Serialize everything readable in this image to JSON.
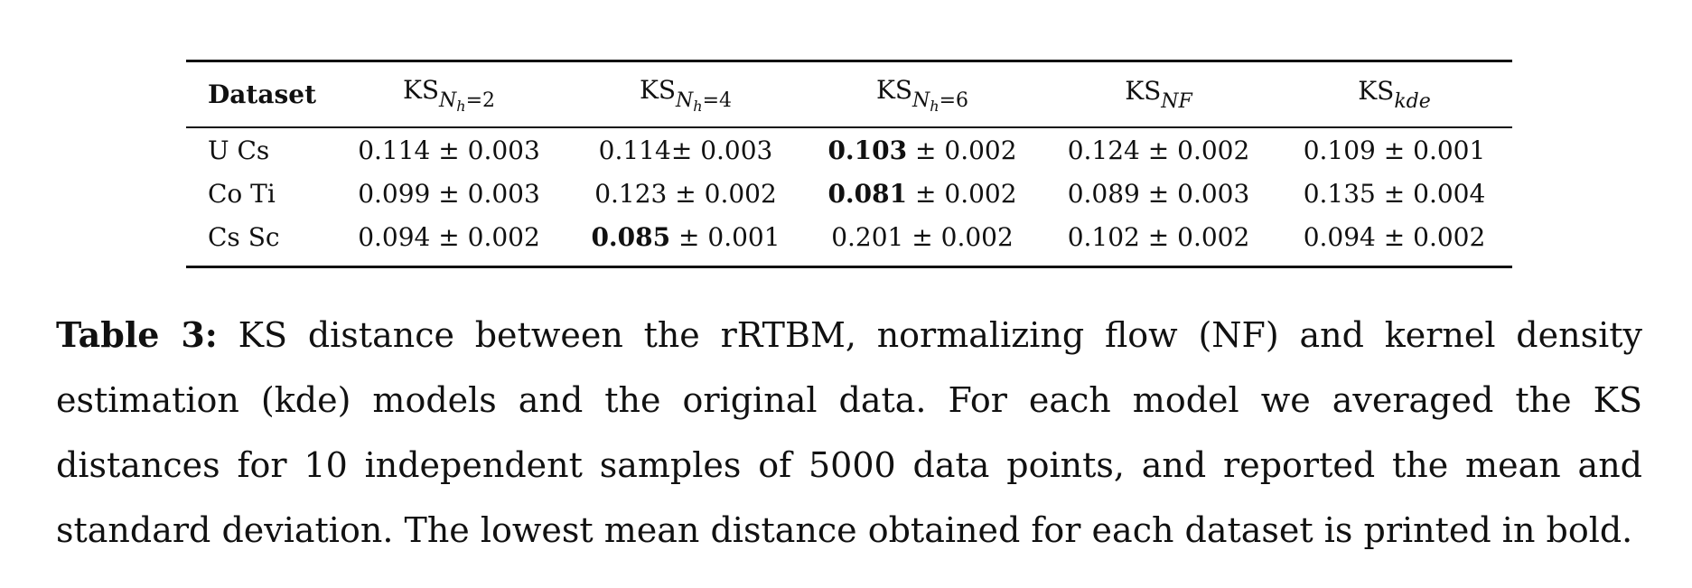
{
  "table": {
    "headers": [
      {
        "main": "Dataset",
        "sub": "",
        "subsub": "",
        "eqval": ""
      },
      {
        "main": "KS",
        "sub": "N",
        "subsub": "h",
        "eqval": "=2"
      },
      {
        "main": "KS",
        "sub": "N",
        "subsub": "h",
        "eqval": "=4"
      },
      {
        "main": "KS",
        "sub": "N",
        "subsub": "h",
        "eqval": "=6"
      },
      {
        "main": "KS",
        "sub": "NF",
        "subsub": "",
        "eqval": ""
      },
      {
        "main": "KS",
        "sub": "kde",
        "subsub": "",
        "eqval": ""
      }
    ],
    "rows": [
      {
        "dataset": "U Cs",
        "cells": [
          {
            "mean": "0.114",
            "sep": " ± ",
            "std": "0.003",
            "bold": false
          },
          {
            "mean": "0.114",
            "sep": "± ",
            "std": "0.003",
            "bold": false
          },
          {
            "mean": "0.103",
            "sep": " ± ",
            "std": "0.002",
            "bold": true
          },
          {
            "mean": "0.124",
            "sep": " ± ",
            "std": "0.002",
            "bold": false
          },
          {
            "mean": "0.109",
            "sep": " ± ",
            "std": "0.001",
            "bold": false
          }
        ]
      },
      {
        "dataset": "Co Ti",
        "cells": [
          {
            "mean": "0.099",
            "sep": " ± ",
            "std": "0.003",
            "bold": false
          },
          {
            "mean": "0.123",
            "sep": " ± ",
            "std": "0.002",
            "bold": false
          },
          {
            "mean": "0.081",
            "sep": " ± ",
            "std": "0.002",
            "bold": true
          },
          {
            "mean": "0.089",
            "sep": " ± ",
            "std": "0.003",
            "bold": false
          },
          {
            "mean": "0.135",
            "sep": " ± ",
            "std": "0.004",
            "bold": false
          }
        ]
      },
      {
        "dataset": "Cs Sc",
        "cells": [
          {
            "mean": "0.094",
            "sep": " ± ",
            "std": "0.002",
            "bold": false
          },
          {
            "mean": "0.085",
            "sep": " ± ",
            "std": "0.001",
            "bold": true
          },
          {
            "mean": "0.201",
            "sep": " ± ",
            "std": "0.002",
            "bold": false
          },
          {
            "mean": "0.102",
            "sep": " ± ",
            "std": "0.002",
            "bold": false
          },
          {
            "mean": "0.094",
            "sep": " ± ",
            "std": "0.002",
            "bold": false
          }
        ]
      }
    ]
  },
  "caption": {
    "label": "Table 3:",
    "text": "KS distance between the rRTBM, normalizing flow (NF) and kernel density estimation (kde) models and the original data. For each model we averaged the KS distances for 10 independent samples of 5000 data points, and reported the mean and standard deviation. The lowest mean distance obtained for each dataset is printed in bold."
  }
}
